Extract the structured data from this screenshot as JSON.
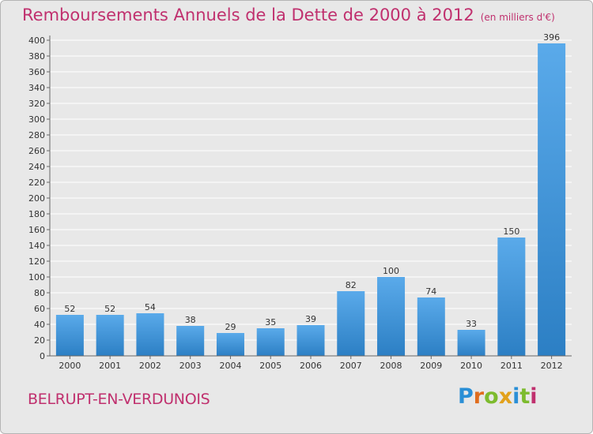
{
  "title": "Remboursements Annuels de la Dette de 2000 à 2012",
  "unit": "(en milliers d'€)",
  "commune": "BELRUPT-EN-VERDUNOIS",
  "logo": {
    "letters": [
      {
        "ch": "P",
        "color": "#2a8fd6"
      },
      {
        "ch": "r",
        "color": "#e06d1e"
      },
      {
        "ch": "o",
        "color": "#7dbb2e"
      },
      {
        "ch": "x",
        "color": "#e2a11b"
      },
      {
        "ch": "i",
        "color": "#2a8fd6"
      },
      {
        "ch": "t",
        "color": "#7dbb2e"
      },
      {
        "ch": "i",
        "color": "#c0306e"
      }
    ]
  },
  "colors": {
    "bar_light": "#5aaaea",
    "bar_dark": "#2c7fc4",
    "title": "#c0306e"
  },
  "chart_data": {
    "type": "bar",
    "categories": [
      "2000",
      "2001",
      "2002",
      "2003",
      "2004",
      "2005",
      "2006",
      "2007",
      "2008",
      "2009",
      "2010",
      "2011",
      "2012"
    ],
    "values": [
      52,
      52,
      54,
      38,
      29,
      35,
      39,
      82,
      100,
      74,
      33,
      150,
      396
    ],
    "ylim": [
      0,
      400
    ],
    "yticks": [
      0,
      20,
      40,
      60,
      80,
      100,
      120,
      140,
      160,
      180,
      200,
      220,
      240,
      260,
      280,
      300,
      320,
      340,
      360,
      380,
      400
    ],
    "grid": true,
    "data_labels": true
  }
}
